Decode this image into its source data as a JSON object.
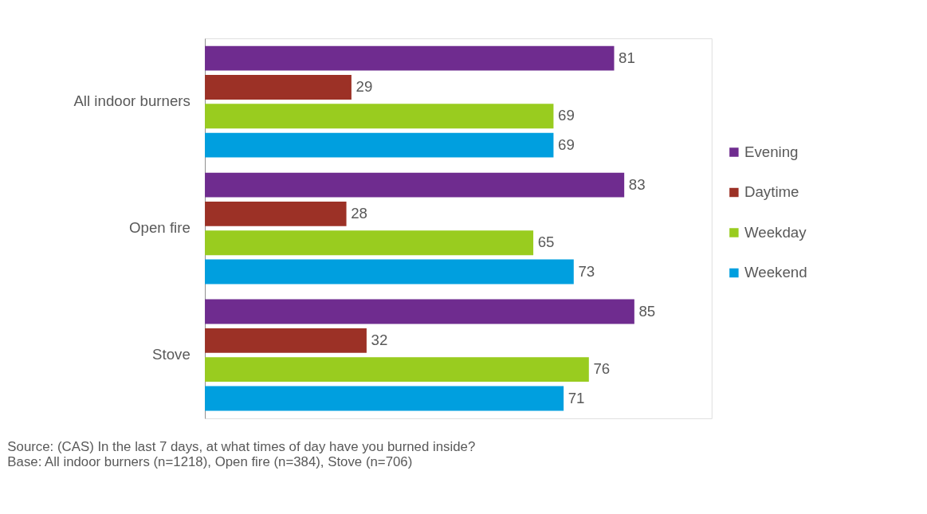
{
  "chart_data": {
    "type": "bar",
    "orientation": "horizontal",
    "categories": [
      "All indoor burners",
      "Open fire",
      "Stove"
    ],
    "series": [
      {
        "name": "Evening",
        "color": "#6f2c8f",
        "values": [
          81,
          83,
          85
        ]
      },
      {
        "name": "Daytime",
        "color": "#9c3126",
        "values": [
          29,
          28,
          32
        ]
      },
      {
        "name": "Weekday",
        "color": "#99cc1f",
        "values": [
          69,
          65,
          76
        ]
      },
      {
        "name": "Weekend",
        "color": "#009fdf",
        "values": [
          69,
          73,
          71
        ]
      }
    ],
    "data_labels": true,
    "legend": "right",
    "annotations": [
      "Source: (CAS) In the last 7 days, at what times of day have you burned inside?",
      "Base: All indoor burners (n=1218), Open fire (n=384), Stove (n=706)"
    ]
  }
}
